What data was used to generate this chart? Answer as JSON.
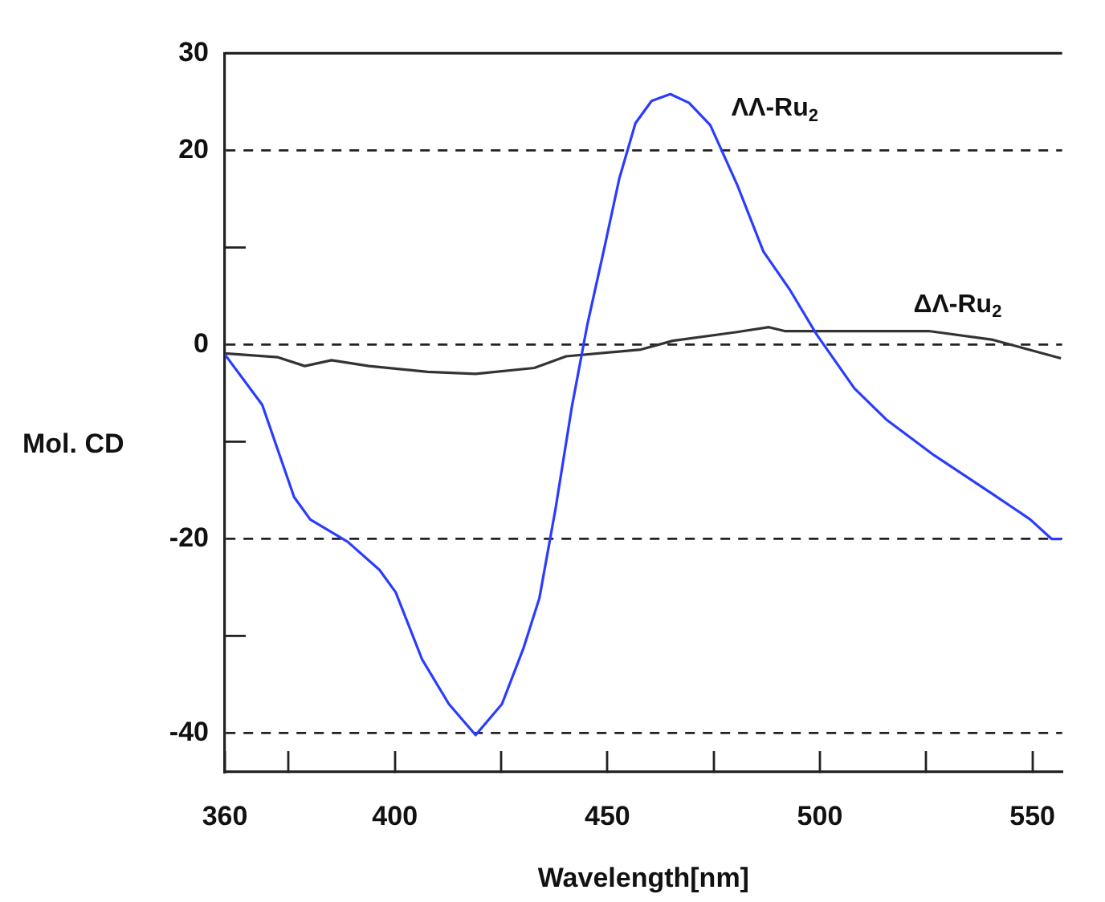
{
  "chart_data": {
    "type": "line",
    "xlabel": "Wavelength[nm]",
    "ylabel": "Mol. CD",
    "xlim": [
      360,
      557
    ],
    "xticks": [
      360,
      {
        "value": 375,
        "label": null
      },
      400,
      {
        "value": 425,
        "label": null
      },
      450,
      {
        "value": 475,
        "label": null
      },
      500,
      {
        "value": 525,
        "label": null
      },
      550
    ],
    "ylim": [
      -44,
      30
    ],
    "yticks": [
      -40,
      {
        "value": -30,
        "label": null
      },
      -20,
      {
        "value": -10,
        "label": null
      },
      0,
      {
        "value": 10,
        "label": null
      },
      20,
      30
    ],
    "grid": "y",
    "legend": false,
    "marker": "none",
    "series": [
      {
        "name": "ΛΛ-Ru$_{2}$",
        "color": "#2a3cff",
        "x": [
          360,
          368.8,
          376.3,
          380.1,
          388.9,
          396.4,
          400.2,
          406.4,
          412.7,
          419,
          425.2,
          430.3,
          434,
          437.8,
          441.6,
          445.3,
          449.1,
          452.8,
          456.6,
          460.4,
          464.8,
          469.2,
          474.2,
          480.5,
          486.7,
          493,
          499.3,
          508.1,
          515.6,
          526.9,
          540.7,
          549.5,
          554.5,
          556.7
        ],
        "values": [
          -1,
          -6.2,
          -15.7,
          -18,
          -20.3,
          -23.2,
          -25.5,
          -32.4,
          -37,
          -40.2,
          -37,
          -31.2,
          -26.1,
          -16.9,
          -6.5,
          2.1,
          9.6,
          17.1,
          22.8,
          25.1,
          25.8,
          24.9,
          22.6,
          16.5,
          9.6,
          5.6,
          1,
          -4.5,
          -7.7,
          -11.4,
          -15.4,
          -18,
          -20,
          -20
        ]
      },
      {
        "name": "ΔΛ-Ru$_{2}$",
        "color": "#333333",
        "x": [
          360,
          372.5,
          378.8,
          385.1,
          393.9,
          407.7,
          419,
          432.8,
          440.3,
          457.9,
          465.4,
          480.5,
          488,
          491.7,
          503,
          525.6,
          540.7,
          556.7
        ],
        "values": [
          -0.9,
          -1.3,
          -2.2,
          -1.6,
          -2.2,
          -2.8,
          -3,
          -2.4,
          -1.2,
          -0.5,
          0.4,
          1.3,
          1.8,
          1.4,
          1.4,
          1.4,
          0.5,
          -1.4
        ]
      }
    ]
  }
}
